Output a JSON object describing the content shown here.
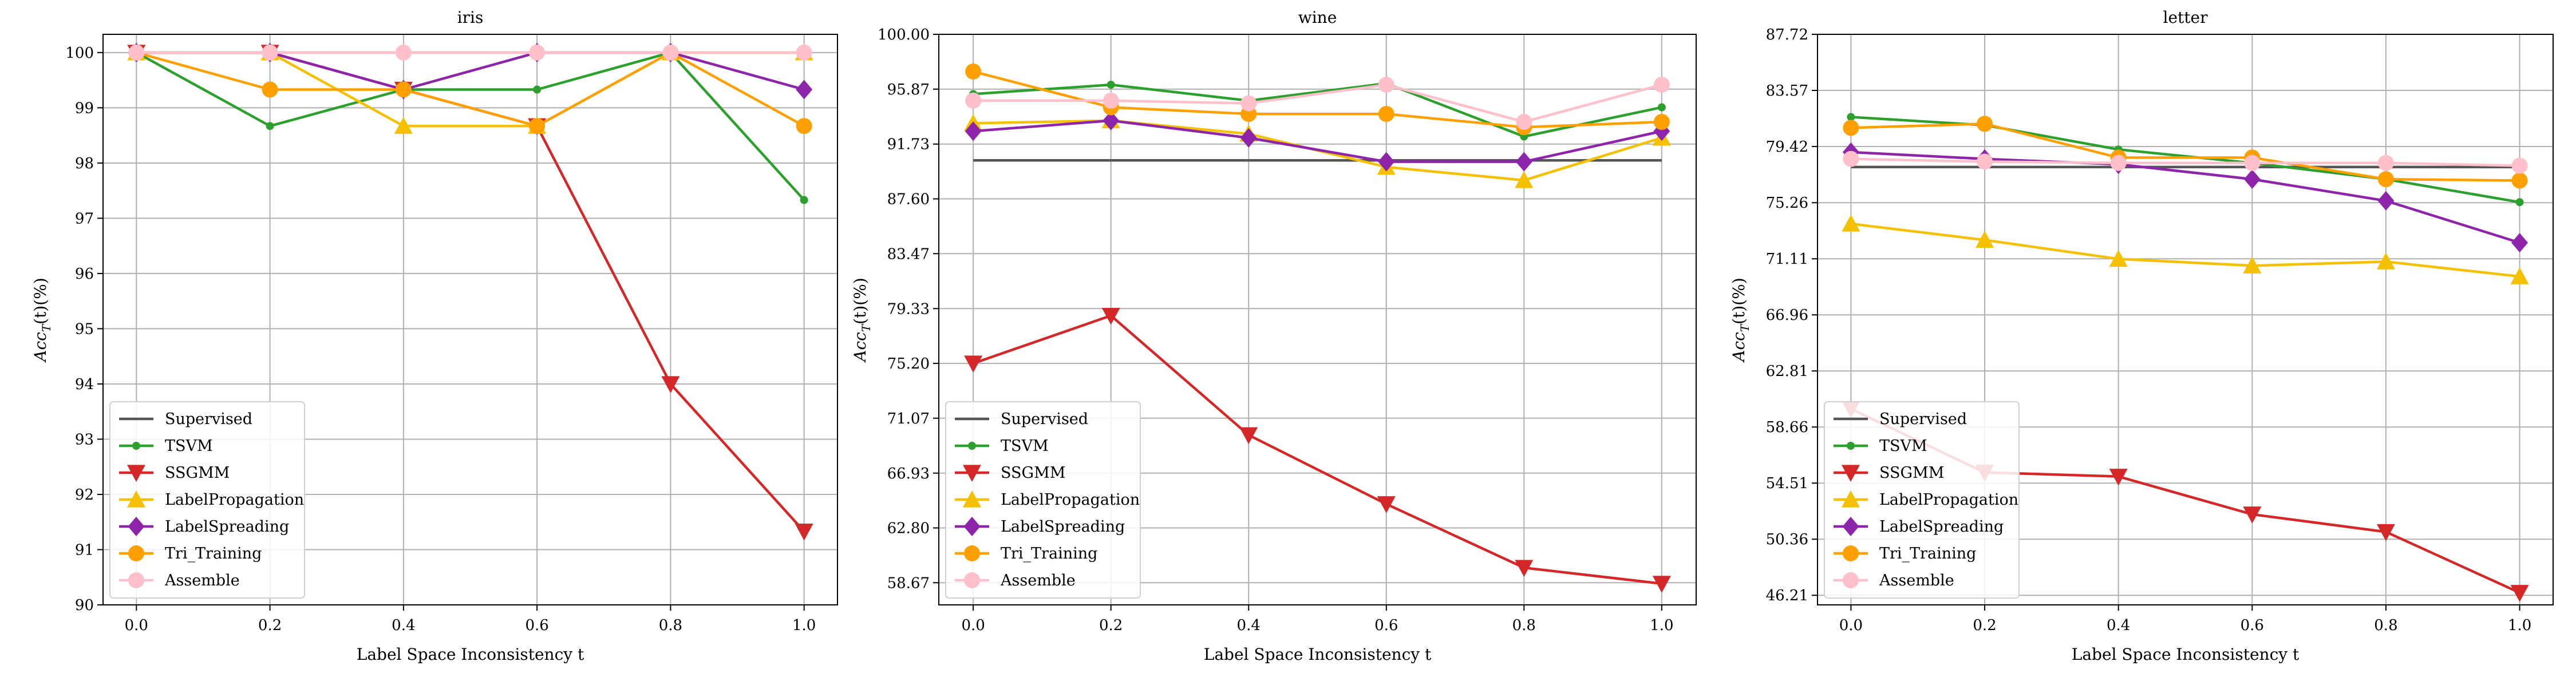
{
  "figure": {
    "series_styles": [
      {
        "name": "Supervised",
        "color": "#555555",
        "marker": "none"
      },
      {
        "name": "TSVM",
        "color": "#2ca02c",
        "marker": "dot"
      },
      {
        "name": "SSGMM",
        "color": "#d62728",
        "marker": "triangle-down"
      },
      {
        "name": "LabelPropagation",
        "color": "#f5c000",
        "marker": "triangle-up"
      },
      {
        "name": "LabelSpreading",
        "color": "#8e24aa",
        "marker": "diamond"
      },
      {
        "name": "Tri_Training",
        "color": "#ffa000",
        "marker": "circle"
      },
      {
        "name": "Assemble",
        "color": "#ffc0cb",
        "marker": "circle"
      }
    ]
  },
  "chart_data": [
    {
      "type": "line",
      "title": "iris",
      "xlabel": "Label Space Inconsistency t",
      "ylabel": "Acc_T(t)(%)",
      "x": [
        0.0,
        0.2,
        0.4,
        0.6,
        0.8,
        1.0
      ],
      "xticks": [
        "0.0",
        "0.2",
        "0.4",
        "0.6",
        "0.8",
        "1.0"
      ],
      "xlim": [
        -0.05,
        1.05
      ],
      "ylim": [
        90,
        100.33
      ],
      "yticks": [
        90,
        91,
        92,
        93,
        94,
        95,
        96,
        97,
        98,
        99,
        100
      ],
      "ytick_labels": [
        "90",
        "91",
        "92",
        "93",
        "94",
        "95",
        "96",
        "97",
        "98",
        "99",
        "100"
      ],
      "grid": true,
      "legend": "lower-left",
      "series": [
        {
          "name": "Supervised",
          "values": [
            100,
            100,
            100,
            100,
            100,
            100
          ]
        },
        {
          "name": "TSVM",
          "values": [
            100,
            98.67,
            99.33,
            99.33,
            100,
            97.33
          ]
        },
        {
          "name": "SSGMM",
          "values": [
            100,
            100,
            99.33,
            98.67,
            94.0,
            91.33
          ]
        },
        {
          "name": "LabelPropagation",
          "values": [
            100,
            100,
            98.67,
            98.67,
            100,
            100
          ]
        },
        {
          "name": "LabelSpreading",
          "values": [
            100,
            100,
            99.33,
            100,
            100,
            99.33
          ]
        },
        {
          "name": "Tri_Training",
          "values": [
            100,
            99.33,
            99.33,
            98.67,
            100,
            98.67
          ]
        },
        {
          "name": "Assemble",
          "values": [
            100,
            100,
            100,
            100,
            100,
            100
          ]
        }
      ]
    },
    {
      "type": "line",
      "title": "wine",
      "xlabel": "Label Space Inconsistency t",
      "ylabel": "Acc_T(t)(%)",
      "x": [
        0.0,
        0.2,
        0.4,
        0.6,
        0.8,
        1.0
      ],
      "xticks": [
        "0.0",
        "0.2",
        "0.4",
        "0.6",
        "0.8",
        "1.0"
      ],
      "xlim": [
        -0.05,
        1.05
      ],
      "ylim": [
        57.0,
        100.0
      ],
      "yticks": [
        58.67,
        62.8,
        66.93,
        71.07,
        75.2,
        79.33,
        83.47,
        87.6,
        91.73,
        95.87,
        100.0
      ],
      "ytick_labels": [
        "58.67",
        "62.80",
        "66.93",
        "71.07",
        "75.20",
        "79.33",
        "83.47",
        "87.60",
        "91.73",
        "95.87",
        "100.00"
      ],
      "grid": true,
      "legend": "lower-left",
      "series": [
        {
          "name": "Supervised",
          "values": [
            90.5,
            90.5,
            90.5,
            90.5,
            90.5,
            90.5
          ]
        },
        {
          "name": "TSVM",
          "values": [
            95.5,
            96.2,
            95.0,
            96.3,
            92.3,
            94.5
          ]
        },
        {
          "name": "SSGMM",
          "values": [
            75.2,
            78.8,
            69.8,
            64.6,
            59.8,
            58.6
          ]
        },
        {
          "name": "LabelPropagation",
          "values": [
            93.3,
            93.5,
            92.5,
            90.0,
            89.0,
            92.2
          ]
        },
        {
          "name": "LabelSpreading",
          "values": [
            92.7,
            93.5,
            92.2,
            90.4,
            90.4,
            92.7
          ]
        },
        {
          "name": "Tri_Training",
          "values": [
            97.2,
            94.5,
            94.0,
            94.0,
            93.0,
            93.4
          ]
        },
        {
          "name": "Assemble",
          "values": [
            95.0,
            95.0,
            94.8,
            96.2,
            93.4,
            96.2
          ]
        }
      ]
    },
    {
      "type": "line",
      "title": "letter",
      "xlabel": "Label Space Inconsistency t",
      "ylabel": "Acc_T(t)(%)",
      "x": [
        0.0,
        0.2,
        0.4,
        0.6,
        0.8,
        1.0
      ],
      "xticks": [
        "0.0",
        "0.2",
        "0.4",
        "0.6",
        "0.8",
        "1.0"
      ],
      "xlim": [
        -0.05,
        1.05
      ],
      "ylim": [
        45.5,
        87.72
      ],
      "yticks": [
        46.21,
        50.36,
        54.51,
        58.66,
        62.81,
        66.96,
        71.11,
        75.26,
        79.42,
        83.57,
        87.72
      ],
      "ytick_labels": [
        "46.21",
        "50.36",
        "54.51",
        "58.66",
        "62.81",
        "66.96",
        "71.11",
        "75.26",
        "79.42",
        "83.57",
        "87.72"
      ],
      "grid": true,
      "legend": "lower-left",
      "series": [
        {
          "name": "Supervised",
          "values": [
            77.9,
            77.9,
            77.9,
            77.9,
            77.9,
            77.9
          ]
        },
        {
          "name": "TSVM",
          "values": [
            81.6,
            81.0,
            79.2,
            78.2,
            77.0,
            75.3
          ]
        },
        {
          "name": "SSGMM",
          "values": [
            60.0,
            55.3,
            55.0,
            52.2,
            50.9,
            46.4
          ]
        },
        {
          "name": "LabelPropagation",
          "values": [
            73.7,
            72.5,
            71.1,
            70.6,
            70.9,
            69.8
          ]
        },
        {
          "name": "LabelSpreading",
          "values": [
            79.0,
            78.5,
            78.1,
            77.0,
            75.4,
            72.3
          ]
        },
        {
          "name": "Tri_Training",
          "values": [
            80.8,
            81.1,
            78.6,
            78.6,
            77.0,
            76.9
          ]
        },
        {
          "name": "Assemble",
          "values": [
            78.5,
            78.3,
            78.2,
            78.2,
            78.2,
            78.0
          ]
        }
      ]
    }
  ]
}
